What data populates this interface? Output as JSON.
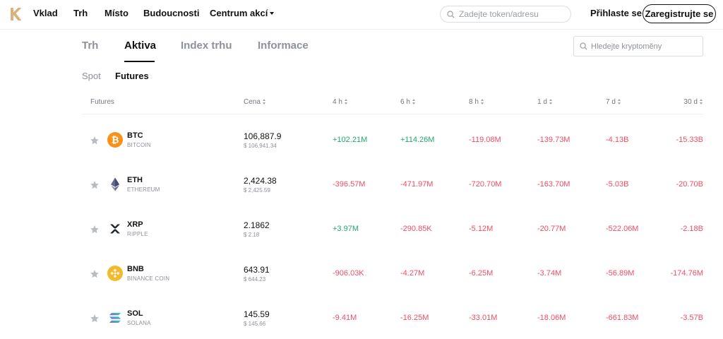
{
  "colors": {
    "text": "#121214",
    "muted": "#8c919a",
    "up": "#23a86a",
    "down": "#f04d65",
    "border": "#dcdde0"
  },
  "nav": {
    "logo_icon": "kucoin-logo-icon",
    "items": [
      "Vklad",
      "Trh",
      "Místo",
      "Budoucnosti",
      "Centrum akcí"
    ],
    "search_placeholder": "Zadejte token/adresu",
    "login": "Přihlaste se",
    "register": "Zaregistrujte se"
  },
  "tabs": [
    "Trh",
    "Aktiva",
    "Index trhu",
    "Informace"
  ],
  "active_tab": "Aktiva",
  "crypto_search_placeholder": "Hledejte kryptoměny",
  "subtabs": [
    "Spot",
    "Futures"
  ],
  "active_subtab": "Futures",
  "table": {
    "headers": [
      "Futures",
      "Cena",
      "4 h",
      "6 h",
      "8 h",
      "1 d",
      "7 d",
      "30 d"
    ],
    "rows": [
      {
        "symbol": "BTC",
        "name": "BITCOIN",
        "icon": "bitcoin-icon",
        "price": "106,887.9",
        "price_usd": "$ 106,941.34",
        "values": [
          "+102.21M",
          "+114.26M",
          "-119.08M",
          "-139.73M",
          "-4.13B",
          "-15.33B"
        ]
      },
      {
        "symbol": "ETH",
        "name": "ETHEREUM",
        "icon": "ethereum-icon",
        "price": "2,424.38",
        "price_usd": "$ 2,425.59",
        "values": [
          "-396.57M",
          "-471.97M",
          "-720.70M",
          "-163.70M",
          "-5.03B",
          "-20.70B"
        ]
      },
      {
        "symbol": "XRP",
        "name": "RIPPLE",
        "icon": "xrp-icon",
        "price": "2.1862",
        "price_usd": "$ 2.18",
        "values": [
          "+3.97M",
          "-290.85K",
          "-5.12M",
          "-20.77M",
          "-522.06M",
          "-2.18B"
        ]
      },
      {
        "symbol": "BNB",
        "name": "BINANCE COIN",
        "icon": "bnb-icon",
        "price": "643.91",
        "price_usd": "$ 644.23",
        "values": [
          "-906.03K",
          "-4.27M",
          "-6.25M",
          "-3.74M",
          "-56.89M",
          "-174.76M"
        ]
      },
      {
        "symbol": "SOL",
        "name": "SOLANA",
        "icon": "solana-icon",
        "price": "145.59",
        "price_usd": "$ 145.66",
        "values": [
          "-9.41M",
          "-16.25M",
          "-33.01M",
          "-18.06M",
          "-661.83M",
          "-3.57B"
        ]
      }
    ]
  }
}
